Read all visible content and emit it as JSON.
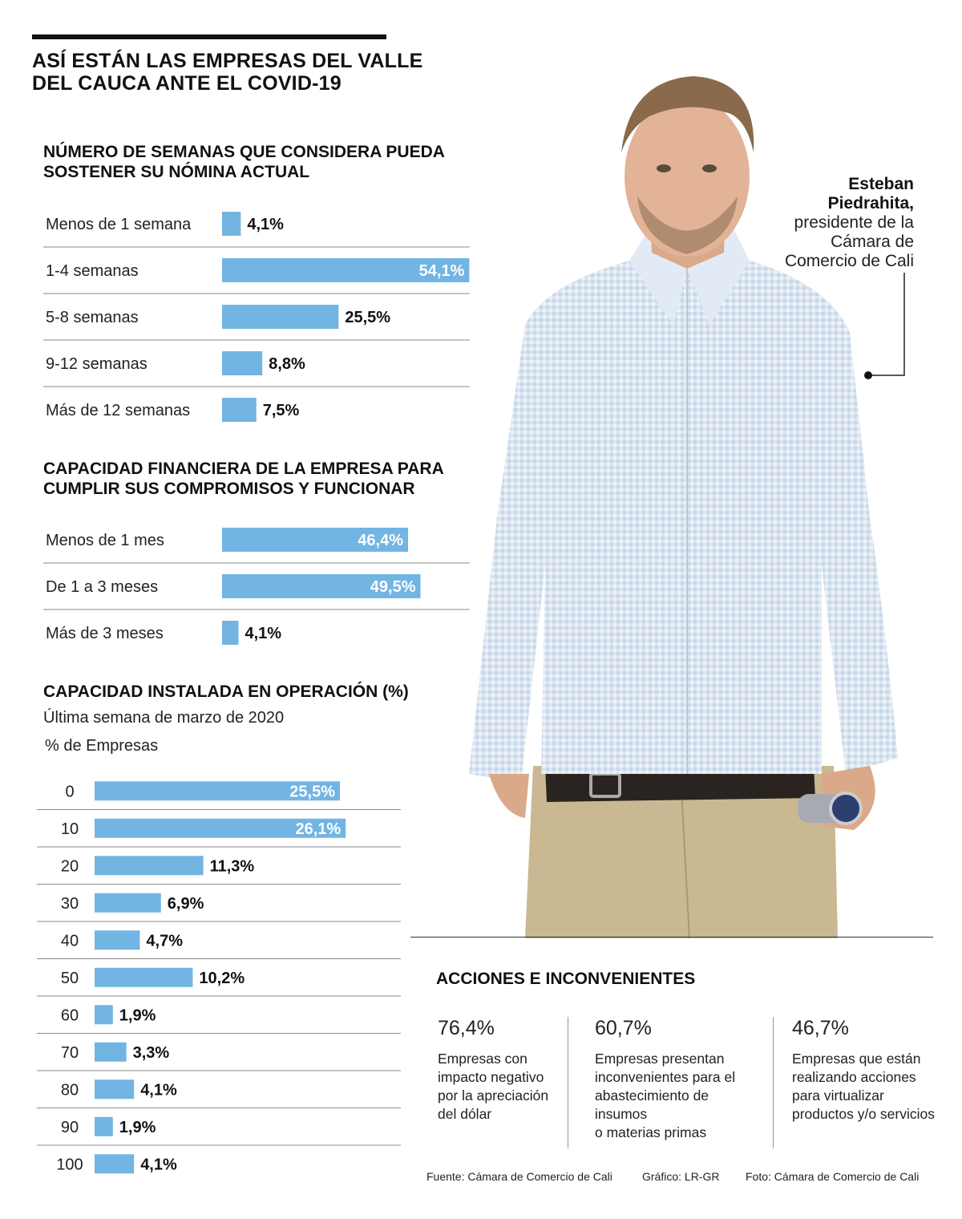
{
  "title": "ASÍ ESTÁN LAS EMPRESAS DEL VALLE DEL CAUCA ANTE EL COVID-19",
  "colors": {
    "bar": "#72b5e3",
    "text": "#1a1a1a"
  },
  "chart_data": [
    {
      "type": "bar",
      "orientation": "horizontal",
      "title": "NÚMERO DE SEMANAS QUE CONSIDERA PUEDA SOSTENER SU NÓMINA ACTUAL",
      "categories": [
        "Menos de 1 semana",
        "1-4 semanas",
        "5-8 semanas",
        "9-12 semanas",
        "Más de 12 semanas"
      ],
      "values": [
        4.1,
        54.1,
        25.5,
        8.8,
        7.5
      ],
      "labels": [
        "4,1%",
        "54,1%",
        "25,5%",
        "8,8%",
        "7,5%"
      ],
      "unit": "%"
    },
    {
      "type": "bar",
      "orientation": "horizontal",
      "title": "CAPACIDAD FINANCIERA DE LA EMPRESA PARA CUMPLIR SUS COMPROMISOS Y FUNCIONAR",
      "categories": [
        "Menos de 1 mes",
        "De 1 a 3 meses",
        "Más de 3 meses"
      ],
      "values": [
        46.4,
        49.5,
        4.1
      ],
      "labels": [
        "46,4%",
        "49,5%",
        "4,1%"
      ],
      "unit": "%"
    },
    {
      "type": "bar",
      "orientation": "horizontal",
      "title": "CAPACIDAD INSTALADA EN OPERACIÓN (%)",
      "subtitle": "Última semana de marzo de 2020",
      "ylabel": "% de Empresas",
      "categories": [
        "0",
        "10",
        "20",
        "30",
        "40",
        "50",
        "60",
        "70",
        "80",
        "90",
        "100"
      ],
      "values": [
        25.5,
        26.1,
        11.3,
        6.9,
        4.7,
        10.2,
        1.9,
        3.3,
        4.1,
        1.9,
        4.1
      ],
      "labels": [
        "25,5%",
        "26,1%",
        "11,3%",
        "6,9%",
        "4,7%",
        "10,2%",
        "1,9%",
        "3,3%",
        "4,1%",
        "1,9%",
        "4,1%"
      ],
      "unit": "%"
    }
  ],
  "portrait": {
    "name": "Esteban Piedrahita,",
    "name_line1": "Esteban",
    "name_line2": "Piedrahita,",
    "role_line1": "presidente de la",
    "role_line2": "Cámara de",
    "role_line3": "Comercio de Cali"
  },
  "actions": {
    "title": "ACCIONES E INCONVENIENTES",
    "items": [
      {
        "pct": "76,4%",
        "desc": [
          "Empresas con",
          "impacto negativo",
          "por la apreciación",
          "del dólar"
        ]
      },
      {
        "pct": "60,7%",
        "desc": [
          "Empresas presentan",
          "inconvenientes para el",
          "abastecimiento de insumos",
          "o materias primas"
        ]
      },
      {
        "pct": "46,7%",
        "desc": [
          "Empresas que están",
          "realizando acciones",
          "para virtualizar",
          "productos y/o servicios"
        ]
      }
    ]
  },
  "footer": {
    "source": "Fuente: Cámara de Comercio de Cali",
    "graphic": "Gráfico: LR-GR",
    "photo": "Foto: Cámara de Comercio de Cali"
  }
}
